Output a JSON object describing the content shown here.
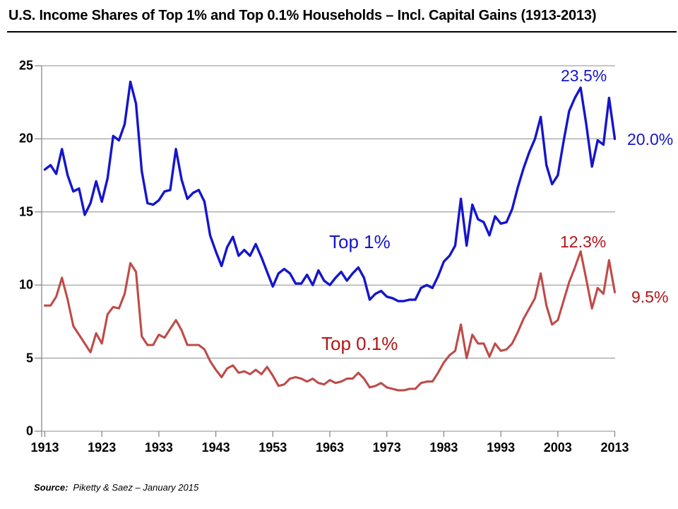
{
  "title": "U.S. Income Shares of Top 1% and Top 0.1% Households – Incl. Capital Gains (1913-2013)",
  "source": {
    "label": "Source:",
    "text": "Piketty & Saez – January 2015"
  },
  "annotations": {
    "top1_series_label": "Top 1%",
    "top01_series_label": "Top 0.1%",
    "blue_peak_value": "23.5%",
    "blue_end_value": "20.0%",
    "red_peak_value": "12.3%",
    "red_end_value": "9.5%"
  },
  "colors": {
    "top1_line": "#1515CD",
    "top1_text": "#1515CD",
    "top01_line": "#BE4B48",
    "top01_text": "#B11517",
    "grid": "#8C8C8C",
    "axis": "#808080",
    "title_text": "#000000",
    "tick_text": "#000000"
  },
  "chart_data": {
    "type": "line",
    "title": "U.S. Income Shares of Top 1% and Top 0.1% Households – Incl. Capital Gains (1913-2013)",
    "xlabel": "",
    "ylabel": "",
    "xlim": [
      1913,
      2013
    ],
    "ylim": [
      0,
      25
    ],
    "grid": true,
    "legend": "inline-text-labels",
    "x_ticks": [
      1913,
      1923,
      1933,
      1943,
      1953,
      1963,
      1973,
      1983,
      1993,
      2003,
      2013
    ],
    "y_ticks": [
      0,
      5,
      10,
      15,
      20,
      25
    ],
    "x": [
      1913,
      1914,
      1915,
      1916,
      1917,
      1918,
      1919,
      1920,
      1921,
      1922,
      1923,
      1924,
      1925,
      1926,
      1927,
      1928,
      1929,
      1930,
      1931,
      1932,
      1933,
      1934,
      1935,
      1936,
      1937,
      1938,
      1939,
      1940,
      1941,
      1942,
      1943,
      1944,
      1945,
      1946,
      1947,
      1948,
      1949,
      1950,
      1951,
      1952,
      1953,
      1954,
      1955,
      1956,
      1957,
      1958,
      1959,
      1960,
      1961,
      1962,
      1963,
      1964,
      1965,
      1966,
      1967,
      1968,
      1969,
      1970,
      1971,
      1972,
      1973,
      1974,
      1975,
      1976,
      1977,
      1978,
      1979,
      1980,
      1981,
      1982,
      1983,
      1984,
      1985,
      1986,
      1987,
      1988,
      1989,
      1990,
      1991,
      1992,
      1993,
      1994,
      1995,
      1996,
      1997,
      1998,
      1999,
      2000,
      2001,
      2002,
      2003,
      2004,
      2005,
      2006,
      2007,
      2008,
      2009,
      2010,
      2011,
      2012,
      2013
    ],
    "series": [
      {
        "id": "top-1-line",
        "name": "Top 1%",
        "color": "#1515CD",
        "width": 3.4,
        "values": [
          17.9,
          18.2,
          17.6,
          19.3,
          17.5,
          16.4,
          16.6,
          14.8,
          15.6,
          17.1,
          15.7,
          17.3,
          20.2,
          19.9,
          21.0,
          23.9,
          22.4,
          17.8,
          15.6,
          15.5,
          15.8,
          16.4,
          16.5,
          19.3,
          17.2,
          15.9,
          16.3,
          16.5,
          15.7,
          13.4,
          12.3,
          11.3,
          12.6,
          13.3,
          12.0,
          12.4,
          12.0,
          12.8,
          11.9,
          10.9,
          9.9,
          10.8,
          11.1,
          10.8,
          10.1,
          10.1,
          10.7,
          10.0,
          11.0,
          10.3,
          10.0,
          10.5,
          10.9,
          10.3,
          10.8,
          11.2,
          10.5,
          9.0,
          9.4,
          9.6,
          9.2,
          9.1,
          8.9,
          8.9,
          9.0,
          9.0,
          9.8,
          10.0,
          9.8,
          10.6,
          11.6,
          12.0,
          12.7,
          15.9,
          12.7,
          15.5,
          14.5,
          14.3,
          13.4,
          14.7,
          14.2,
          14.3,
          15.2,
          16.7,
          18.0,
          19.1,
          20.0,
          21.5,
          18.2,
          16.9,
          17.5,
          19.8,
          21.9,
          22.8,
          23.5,
          21.0,
          18.1,
          19.9,
          19.6,
          22.8,
          20.0
        ]
      },
      {
        "id": "top-0p1-line",
        "name": "Top 0.1%",
        "color": "#BE4B48",
        "width": 3.1,
        "values": [
          8.6,
          8.6,
          9.2,
          10.5,
          9.0,
          7.2,
          6.6,
          6.0,
          5.4,
          6.7,
          6.0,
          8.0,
          8.5,
          8.4,
          9.4,
          11.5,
          10.9,
          6.5,
          5.9,
          5.9,
          6.6,
          6.4,
          7.0,
          7.6,
          6.9,
          5.9,
          5.9,
          5.9,
          5.6,
          4.8,
          4.2,
          3.7,
          4.3,
          4.5,
          4.0,
          4.1,
          3.9,
          4.2,
          3.9,
          4.4,
          3.8,
          3.1,
          3.2,
          3.6,
          3.7,
          3.6,
          3.4,
          3.6,
          3.3,
          3.2,
          3.5,
          3.3,
          3.4,
          3.6,
          3.6,
          4.0,
          3.6,
          3.0,
          3.1,
          3.3,
          3.0,
          2.9,
          2.8,
          2.8,
          2.9,
          2.9,
          3.3,
          3.4,
          3.4,
          4.0,
          4.7,
          5.2,
          5.5,
          7.3,
          5.0,
          6.6,
          6.0,
          6.0,
          5.1,
          6.0,
          5.5,
          5.6,
          6.0,
          6.8,
          7.7,
          8.4,
          9.1,
          10.8,
          8.6,
          7.3,
          7.6,
          8.9,
          10.2,
          11.2,
          12.3,
          10.4,
          8.4,
          9.8,
          9.4,
          11.7,
          9.5
        ]
      }
    ]
  }
}
